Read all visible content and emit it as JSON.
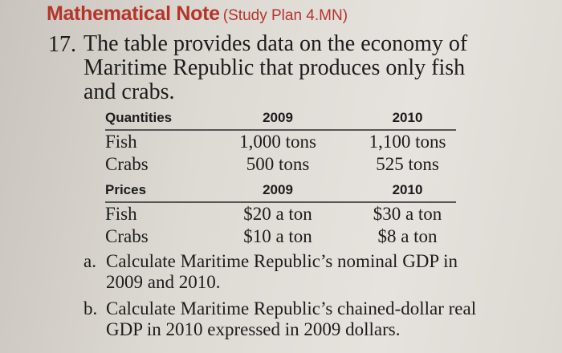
{
  "heading": {
    "title": "Mathematical Note",
    "subtitle": "(Study Plan 4.MN)"
  },
  "question": {
    "number": "17.",
    "text": "The table provides data on the economy of Maritime Republic that produces only fish and crabs."
  },
  "quantities_table": {
    "headers": [
      "Quantities",
      "2009",
      "2010"
    ],
    "rows": [
      [
        "Fish",
        "1,000 tons",
        "1,100 tons"
      ],
      [
        "Crabs",
        "500 tons",
        "525 tons"
      ]
    ]
  },
  "prices_table": {
    "headers": [
      "Prices",
      "2009",
      "2010"
    ],
    "rows": [
      [
        "Fish",
        "$20 a ton",
        "$30 a ton"
      ],
      [
        "Crabs",
        "$10 a ton",
        "$8 a ton"
      ]
    ]
  },
  "parts": [
    {
      "label": "a.",
      "text": "Calculate Maritime Republic’s nominal GDP in 2009 and 2010."
    },
    {
      "label": "b.",
      "text": "Calculate Maritime Republic’s chained-dollar real GDP in 2010 expressed in 2009 dollars."
    }
  ],
  "colors": {
    "heading": "#b5342a",
    "text": "#1c1c1c"
  }
}
